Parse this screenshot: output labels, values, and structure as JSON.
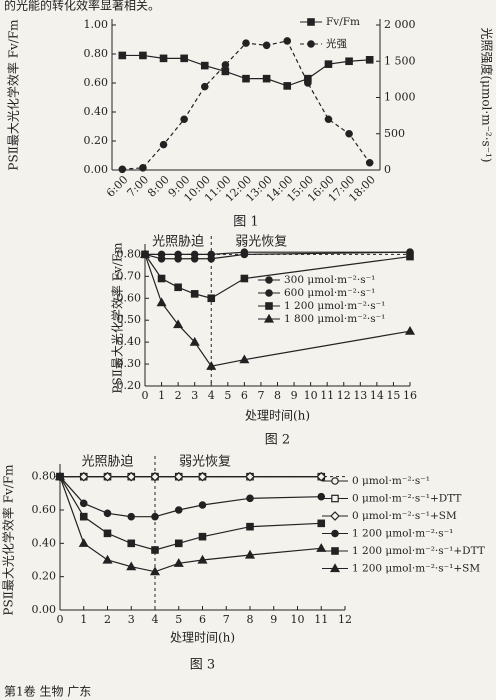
{
  "page_text": {
    "top": "的光能的转化效率显著相关。",
    "bottom": "第1卷 生物  广东"
  },
  "chart_data": [
    {
      "type": "line",
      "caption": "图 1",
      "ylabel": "PSⅡ最大光化学效率 Fv/Fm",
      "y2label": "光照强度(μmol·m⁻²·s⁻¹)",
      "categories": [
        "6:00",
        "7:00",
        "8:00",
        "9:00",
        "10:00",
        "11:00",
        "12:00",
        "13:00",
        "14:00",
        "15:00",
        "16:00",
        "17:00",
        "18:00"
      ],
      "ylim": [
        0,
        1
      ],
      "yticks": [
        {
          "value": 0,
          "label": "0.00"
        },
        {
          "value": 0.2,
          "label": "0.20"
        },
        {
          "value": 0.4,
          "label": "0.40"
        },
        {
          "value": 0.6,
          "label": "0.60"
        },
        {
          "value": 0.8,
          "label": "0.80"
        },
        {
          "value": 1,
          "label": "1.00"
        }
      ],
      "y2lim": [
        0,
        2000
      ],
      "y2ticks": [
        0,
        500,
        {
          "value": 1000,
          "label": "1 000"
        },
        {
          "value": 1500,
          "label": "1 500"
        },
        {
          "value": 2000,
          "label": "2 000"
        }
      ],
      "series": [
        {
          "name": "Fv/Fm",
          "color": "#222",
          "marker": "square",
          "values": [
            0.79,
            0.79,
            0.77,
            0.77,
            0.72,
            0.68,
            0.63,
            0.63,
            0.58,
            0.63,
            0.73,
            0.75,
            0.76
          ]
        },
        {
          "name": "光强",
          "color": "#222",
          "marker": "circle",
          "dashed": true,
          "axis": "y2",
          "values": [
            10,
            30,
            350,
            700,
            1150,
            1450,
            1750,
            1720,
            1780,
            1200,
            700,
            500,
            100
          ]
        }
      ]
    },
    {
      "type": "line",
      "caption": "图 2",
      "ylabel": "PSⅡ最大光化学效率 Fv/Fm",
      "xlabel": "处理时间(h)",
      "annotations": [
        "光照胁迫",
        "弱光恢复"
      ],
      "x": [
        0,
        1,
        2,
        3,
        4,
        6,
        16
      ],
      "xlim": [
        0,
        16
      ],
      "xticks": [
        0,
        1,
        2,
        3,
        4,
        5,
        6,
        7,
        8,
        9,
        10,
        11,
        12,
        13,
        14,
        15,
        16
      ],
      "ylim": [
        0.2,
        0.82
      ],
      "yticks": [
        {
          "value": 0.2,
          "label": "0.20"
        },
        {
          "value": 0.3,
          "label": "0.30"
        },
        {
          "value": 0.4,
          "label": "0.40"
        },
        {
          "value": 0.5,
          "label": "0.50"
        },
        {
          "value": 0.6,
          "label": "0.60"
        },
        {
          "value": 0.7,
          "label": "0.70"
        },
        {
          "value": 0.8,
          "label": "0.80"
        }
      ],
      "series": [
        {
          "name": "300 μmol·m⁻²·s⁻¹",
          "color": "#222",
          "marker": "circle",
          "values": [
            0.8,
            0.8,
            0.8,
            0.8,
            0.8,
            0.81,
            0.81
          ]
        },
        {
          "name": "600 μmol·m⁻²·s⁻¹",
          "color": "#222",
          "marker": "circle",
          "values": [
            0.8,
            0.78,
            0.78,
            0.78,
            0.78,
            0.8,
            0.81
          ]
        },
        {
          "name": "1 200 μmol·m⁻²·s⁻¹",
          "color": "#222",
          "marker": "square",
          "values": [
            0.8,
            0.69,
            0.65,
            0.62,
            0.6,
            0.69,
            0.79
          ]
        },
        {
          "name": "1 800 μmol·m⁻²·s⁻¹",
          "color": "#222",
          "marker": "triangle",
          "values": [
            0.8,
            0.58,
            0.48,
            0.4,
            0.29,
            0.32,
            0.45
          ]
        }
      ]
    },
    {
      "type": "line",
      "caption": "图 3",
      "ylabel": "PSⅡ最大光化学效率 Fv/Fm",
      "xlabel": "处理时间(h)",
      "annotations": [
        "光照胁迫",
        "弱光恢复"
      ],
      "x": [
        0,
        1,
        2,
        3,
        4,
        5,
        6,
        8,
        11
      ],
      "xlim": [
        0,
        12
      ],
      "xticks": [
        0,
        1,
        2,
        3,
        4,
        5,
        6,
        7,
        8,
        9,
        10,
        11,
        12
      ],
      "ylim": [
        0,
        0.84
      ],
      "yticks": [
        {
          "value": 0,
          "label": "0.00"
        },
        {
          "value": 0.2,
          "label": "0.20"
        },
        {
          "value": 0.4,
          "label": "0.40"
        },
        {
          "value": 0.6,
          "label": "0.60"
        },
        {
          "value": 0.8,
          "label": "0.80"
        }
      ],
      "series": [
        {
          "name": "0 μmol·m⁻²·s⁻¹",
          "color": "#222",
          "marker": "circle-open",
          "values": [
            0.8,
            0.8,
            0.8,
            0.8,
            0.8,
            0.8,
            0.8,
            0.8,
            0.8
          ]
        },
        {
          "name": "0 μmol·m⁻²·s⁻¹+DTT",
          "color": "#222",
          "marker": "square-open",
          "values": [
            0.8,
            0.8,
            0.8,
            0.8,
            0.8,
            0.8,
            0.8,
            0.8,
            0.8
          ]
        },
        {
          "name": "0 μmol·m⁻²·s⁻¹+SM",
          "color": "#222",
          "marker": "diamond-open",
          "values": [
            0.8,
            0.8,
            0.8,
            0.8,
            0.8,
            0.8,
            0.8,
            0.8,
            0.8
          ]
        },
        {
          "name": "1 200 μmol·m⁻²·s⁻¹",
          "color": "#222",
          "marker": "circle",
          "values": [
            0.8,
            0.64,
            0.58,
            0.56,
            0.56,
            0.6,
            0.63,
            0.67,
            0.68
          ]
        },
        {
          "name": "1 200 μmol·m⁻²·s⁻¹+DTT",
          "color": "#222",
          "marker": "square",
          "values": [
            0.8,
            0.56,
            0.46,
            0.4,
            0.36,
            0.4,
            0.44,
            0.5,
            0.52
          ]
        },
        {
          "name": "1 200 μmol·m⁻²·s⁻¹+SM",
          "color": "#222",
          "marker": "triangle",
          "values": [
            0.8,
            0.4,
            0.3,
            0.26,
            0.23,
            0.28,
            0.3,
            0.33,
            0.37
          ]
        }
      ]
    }
  ]
}
